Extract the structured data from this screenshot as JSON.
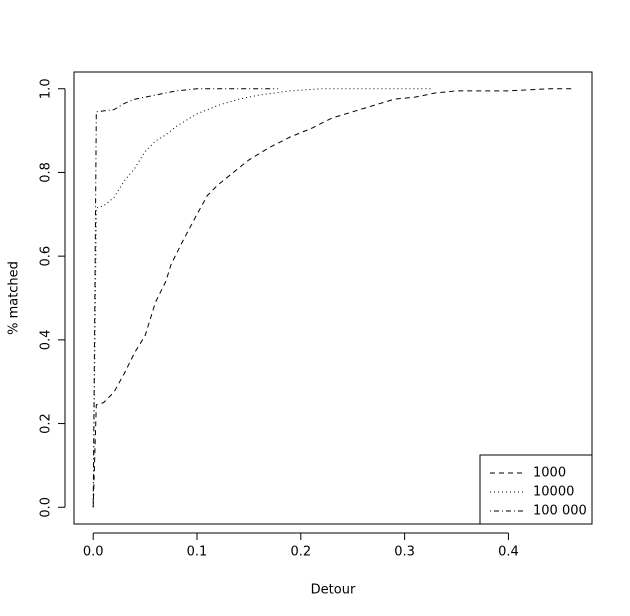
{
  "chart_data": {
    "type": "line",
    "x_label": "Detour",
    "y_label": "% matched",
    "xlim": [
      -0.0185,
      0.4805
    ],
    "ylim": [
      -0.04,
      1.04
    ],
    "xticks": [
      {
        "value": 0,
        "label": "0.0"
      },
      0.1,
      0.2,
      0.3,
      0.4
    ],
    "yticks": [
      {
        "value": 0,
        "label": "0.0"
      },
      0.2,
      0.4,
      0.6,
      0.8,
      {
        "value": 1,
        "label": "1.0"
      }
    ],
    "legend": "bottom-right",
    "series": [
      {
        "name": "1000",
        "color": "#000000",
        "dash": "dashed",
        "x": [
          0,
          0.003,
          0.01,
          0.02,
          0.03,
          0.04,
          0.05,
          0.055,
          0.06,
          0.07,
          0.075,
          0.085,
          0.1,
          0.11,
          0.12,
          0.13,
          0.14,
          0.15,
          0.17,
          0.19,
          0.21,
          0.23,
          0.25,
          0.27,
          0.29,
          0.31,
          0.33,
          0.35,
          0.4,
          0.44,
          0.462
        ],
        "values": [
          0,
          0.245,
          0.25,
          0.275,
          0.32,
          0.37,
          0.41,
          0.45,
          0.49,
          0.54,
          0.58,
          0.63,
          0.7,
          0.745,
          0.77,
          0.79,
          0.81,
          0.83,
          0.86,
          0.885,
          0.905,
          0.93,
          0.945,
          0.96,
          0.975,
          0.98,
          0.99,
          0.995,
          0.995,
          1.0,
          1.0
        ]
      },
      {
        "name": "10000",
        "color": "#000000",
        "dash": "dotted",
        "x": [
          0,
          0.003,
          0.01,
          0.02,
          0.03,
          0.04,
          0.05,
          0.06,
          0.07,
          0.08,
          0.1,
          0.12,
          0.14,
          0.16,
          0.19,
          0.22,
          0.325
        ],
        "values": [
          0,
          0.715,
          0.72,
          0.74,
          0.78,
          0.81,
          0.85,
          0.875,
          0.89,
          0.91,
          0.94,
          0.96,
          0.975,
          0.985,
          0.995,
          1.0,
          1.0
        ]
      },
      {
        "name": "100 000",
        "color": "#000000",
        "dash": "dotdash",
        "x": [
          0,
          0.003,
          0.02,
          0.03,
          0.04,
          0.06,
          0.08,
          0.1,
          0.178
        ],
        "values": [
          0,
          0.945,
          0.95,
          0.965,
          0.975,
          0.985,
          0.995,
          1.0,
          1.0
        ]
      }
    ]
  }
}
